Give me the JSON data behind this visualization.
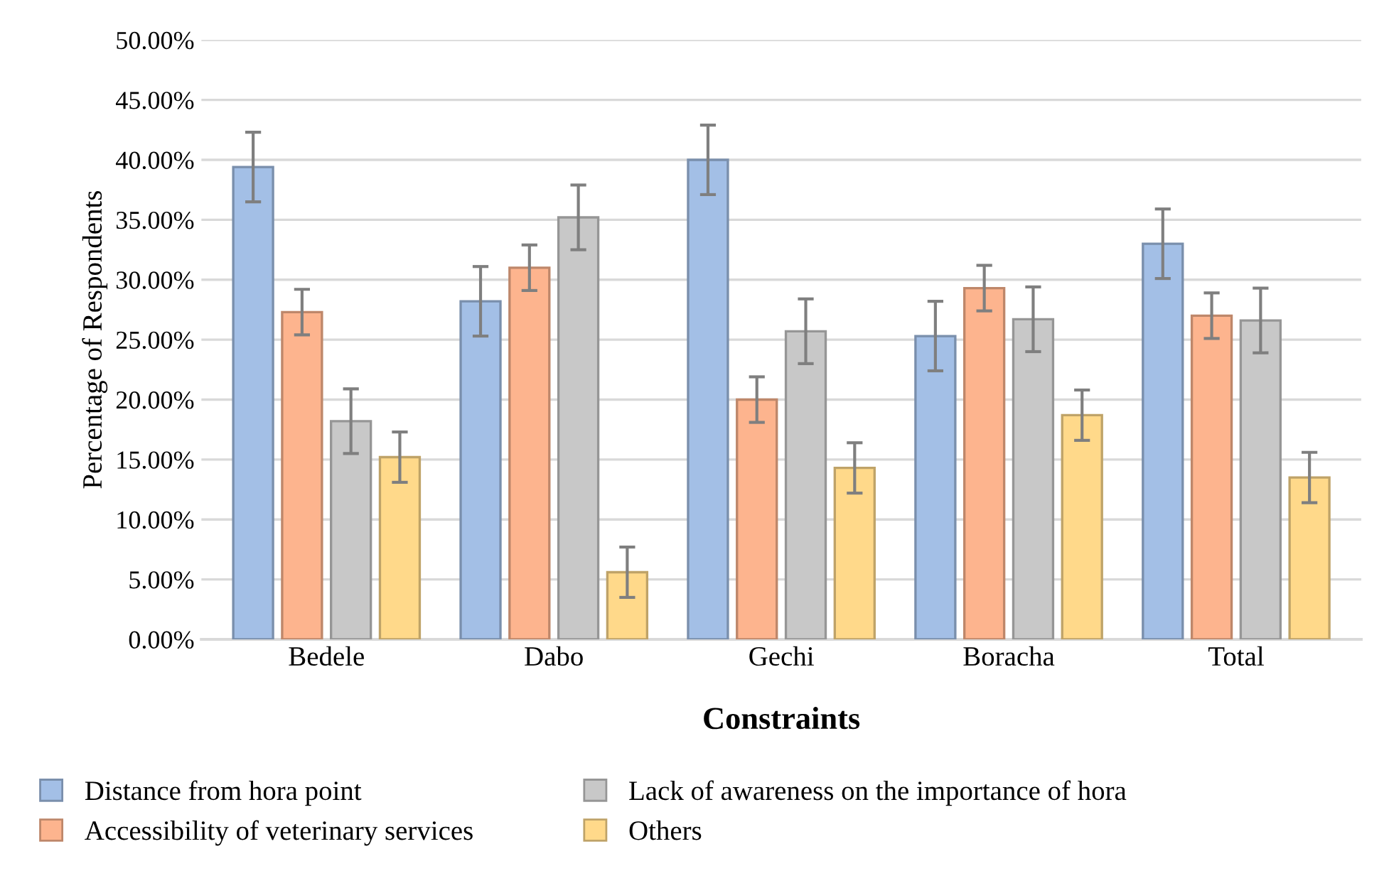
{
  "chart_data": {
    "type": "bar",
    "xlabel": "Constraints",
    "ylabel": "Percentage of Respondents",
    "categories": [
      "Bedele",
      "Dabo",
      "Gechi",
      "Boracha",
      "Total"
    ],
    "series": [
      {
        "name": "Distance from hora point",
        "color": "#a3bfe6",
        "values": [
          39.4,
          28.2,
          40.0,
          25.3,
          33.0
        ],
        "errors": [
          2.9,
          2.9,
          2.9,
          2.9,
          2.9
        ]
      },
      {
        "name": "Accessibility of veterinary services",
        "color": "#fdb48e",
        "values": [
          27.3,
          31.0,
          20.0,
          29.3,
          27.0
        ],
        "errors": [
          1.9,
          1.9,
          1.9,
          1.9,
          1.9
        ]
      },
      {
        "name": "Lack of awareness on the importance of hora",
        "color": "#c8c8c8",
        "values": [
          18.2,
          35.2,
          25.7,
          26.7,
          26.6
        ],
        "errors": [
          2.7,
          2.7,
          2.7,
          2.7,
          2.7
        ]
      },
      {
        "name": "Others",
        "color": "#ffd98a",
        "values": [
          15.2,
          5.6,
          14.3,
          18.7,
          13.5
        ],
        "errors": [
          2.1,
          2.1,
          2.1,
          2.1,
          2.1
        ]
      }
    ],
    "ylim": [
      0,
      50
    ],
    "yticks": [
      {
        "value": 0,
        "label": "0.00%"
      },
      {
        "value": 5,
        "label": "5.00%"
      },
      {
        "value": 10,
        "label": "10.00%"
      },
      {
        "value": 15,
        "label": "15.00%"
      },
      {
        "value": 20,
        "label": "20.00%"
      },
      {
        "value": 25,
        "label": "25.00%"
      },
      {
        "value": 30,
        "label": "30.00%"
      },
      {
        "value": 35,
        "label": "35.00%"
      },
      {
        "value": 40,
        "label": "40.00%"
      },
      {
        "value": 45,
        "label": "45.00%"
      },
      {
        "value": 50,
        "label": "50.00%"
      }
    ],
    "grid": "y",
    "legend": "bottom"
  }
}
